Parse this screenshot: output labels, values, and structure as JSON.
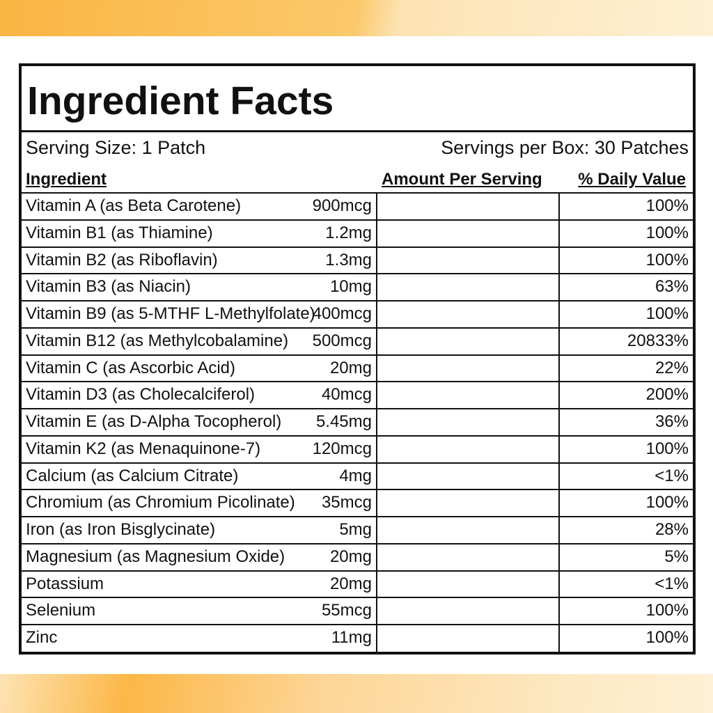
{
  "title": "Ingredient Facts",
  "serving_size": "Serving Size: 1 Patch",
  "servings_per_box": "Servings per Box: 30 Patches",
  "table": {
    "headers": [
      "Ingredient",
      "Amount Per Serving",
      "% Daily Value"
    ],
    "rows": [
      [
        "Vitamin A (as Beta Carotene)",
        "900mcg",
        "100%"
      ],
      [
        "Vitamin B1 (as Thiamine)",
        "1.2mg",
        "100%"
      ],
      [
        "Vitamin B2 (as Riboflavin)",
        "1.3mg",
        "100%"
      ],
      [
        "Vitamin B3 (as Niacin)",
        "10mg",
        "63%"
      ],
      [
        "Vitamin B9 (as 5-MTHF L-Methylfolate)",
        "400mcg",
        "100%"
      ],
      [
        "Vitamin B12 (as Methylcobalamine)",
        "500mcg",
        "20833%"
      ],
      [
        "Vitamin C (as Ascorbic Acid)",
        "20mg",
        "22%"
      ],
      [
        "Vitamin D3 (as Cholecalciferol)",
        "40mcg",
        "200%"
      ],
      [
        "Vitamin E (as D-Alpha Tocopherol)",
        "5.45mg",
        "36%"
      ],
      [
        "Vitamin K2 (as Menaquinone-7)",
        "120mcg",
        "100%"
      ],
      [
        "Calcium (as Calcium Citrate)",
        "4mg",
        "<1%"
      ],
      [
        "Chromium (as Chromium Picolinate)",
        "35mcg",
        "100%"
      ],
      [
        "Iron (as Iron Bisglycinate)",
        "5mg",
        "28%"
      ],
      [
        "Magnesium (as Magnesium Oxide)",
        "20mg",
        "5%"
      ],
      [
        "Potassium",
        "20mg",
        "<1%"
      ],
      [
        "Selenium",
        "55mcg",
        "100%"
      ],
      [
        "Zinc",
        "11mg",
        "100%"
      ]
    ]
  }
}
